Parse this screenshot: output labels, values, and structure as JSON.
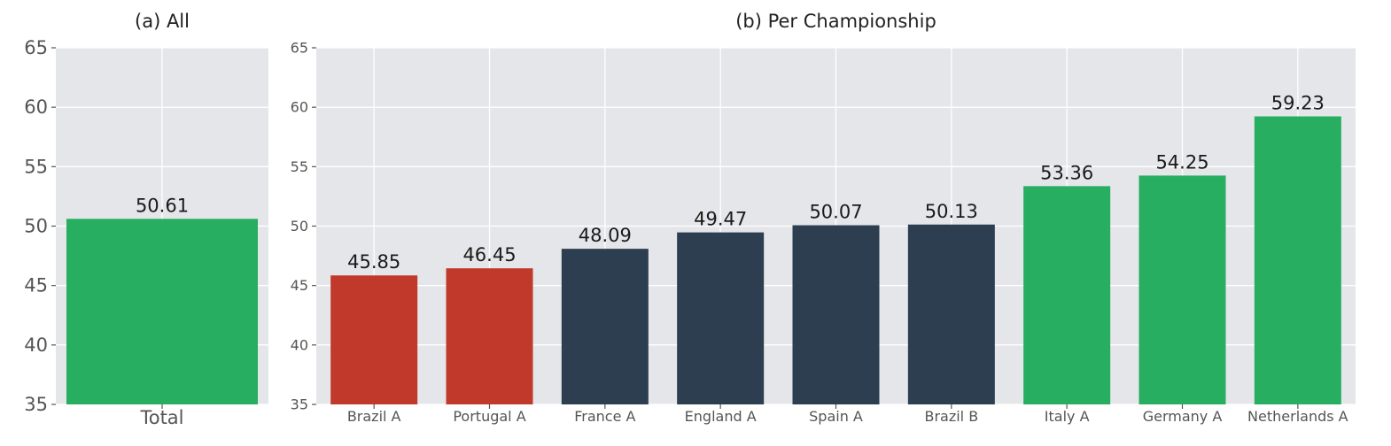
{
  "chart_data": [
    {
      "type": "bar",
      "title": "(a) All",
      "categories": [
        "Total"
      ],
      "values": [
        50.61
      ],
      "value_labels": [
        "50.61"
      ],
      "colors": [
        "#27ae60"
      ],
      "ylim": [
        35,
        65
      ],
      "yticks": [
        35,
        40,
        45,
        50,
        55,
        60,
        65
      ],
      "xlabel": "",
      "ylabel": "",
      "grid": true
    },
    {
      "type": "bar",
      "title": "(b) Per Championship",
      "categories": [
        "Brazil A",
        "Portugal A",
        "France A",
        "England A",
        "Spain A",
        "Brazil B",
        "Italy A",
        "Germany A",
        "Netherlands A"
      ],
      "values": [
        45.85,
        46.45,
        48.09,
        49.47,
        50.07,
        50.13,
        53.36,
        54.25,
        59.23
      ],
      "value_labels": [
        "45.85",
        "46.45",
        "48.09",
        "49.47",
        "50.07",
        "50.13",
        "53.36",
        "54.25",
        "59.23"
      ],
      "colors": [
        "#c0392b",
        "#c0392b",
        "#2c3e50",
        "#2c3e50",
        "#2c3e50",
        "#2c3e50",
        "#27ae60",
        "#27ae60",
        "#27ae60"
      ],
      "ylim": [
        35,
        65
      ],
      "yticks": [
        35,
        40,
        45,
        50,
        55,
        60,
        65
      ],
      "xlabel": "",
      "ylabel": "",
      "grid": true
    }
  ]
}
